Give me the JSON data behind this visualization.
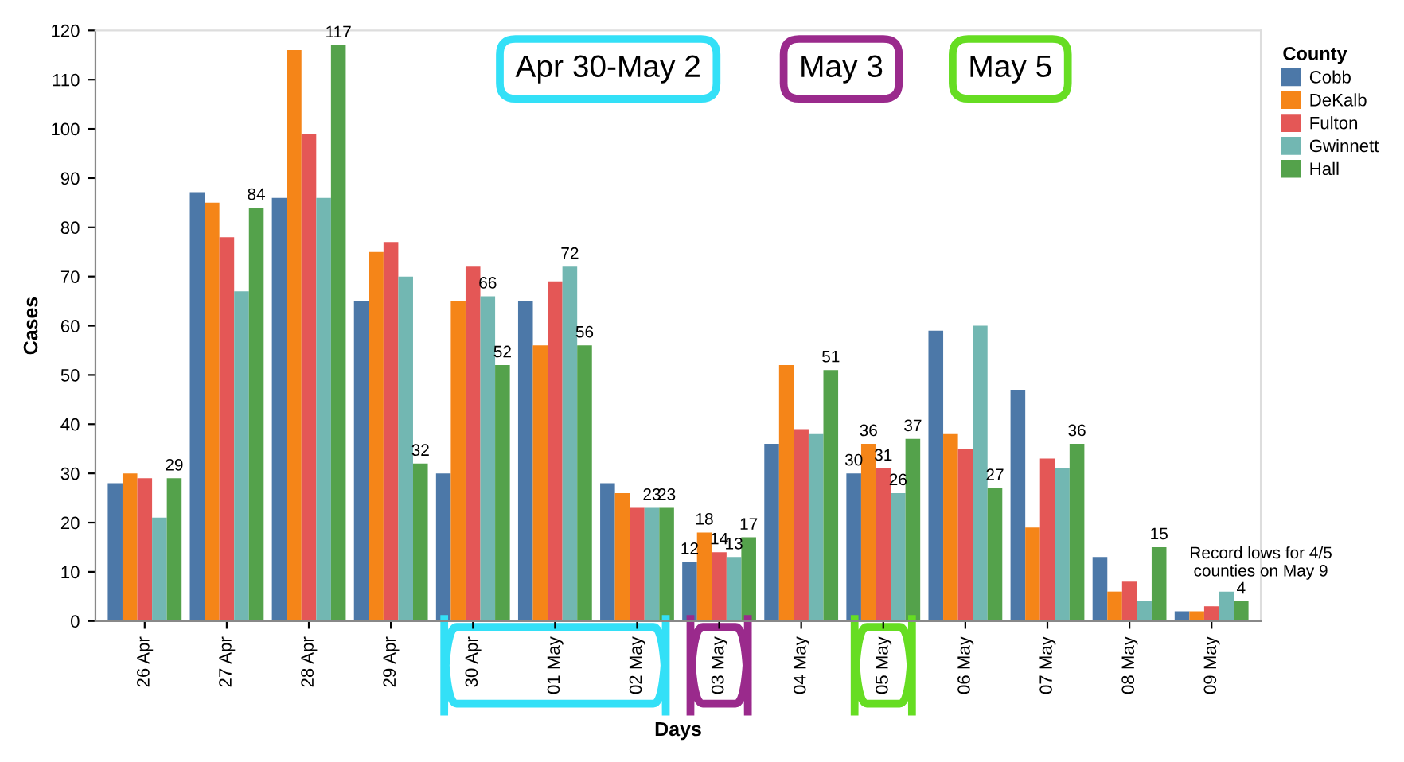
{
  "chart_data": {
    "type": "bar",
    "xlabel": "Days",
    "ylabel": "Cases",
    "legend_title": "County",
    "legend": "top right",
    "grid": false,
    "categories": [
      "26 Apr",
      "27 Apr",
      "28 Apr",
      "29 Apr",
      "30 Apr",
      "01 May",
      "02 May",
      "03 May",
      "04 May",
      "05 May",
      "06 May",
      "07 May",
      "08 May",
      "09 May"
    ],
    "ylim": [
      0,
      120
    ],
    "yticks": [
      0,
      10,
      20,
      30,
      40,
      50,
      60,
      70,
      80,
      90,
      100,
      110,
      120
    ],
    "series": [
      {
        "name": "Cobb",
        "color": "#4c78a8",
        "values": [
          28,
          87,
          86,
          65,
          30,
          65,
          28,
          12,
          36,
          30,
          59,
          47,
          13,
          2
        ],
        "value_labels": [
          null,
          null,
          null,
          null,
          null,
          null,
          null,
          "12",
          null,
          "30",
          null,
          null,
          null,
          null
        ]
      },
      {
        "name": "DeKalb",
        "color": "#f58518",
        "values": [
          30,
          85,
          116,
          75,
          65,
          56,
          26,
          18,
          52,
          36,
          38,
          19,
          6,
          2
        ],
        "value_labels": [
          null,
          null,
          null,
          null,
          null,
          null,
          null,
          "18",
          null,
          "36",
          null,
          null,
          null,
          null
        ]
      },
      {
        "name": "Fulton",
        "color": "#e45756",
        "values": [
          29,
          78,
          99,
          77,
          72,
          69,
          23,
          14,
          39,
          31,
          35,
          33,
          8,
          3
        ],
        "value_labels": [
          null,
          null,
          null,
          null,
          null,
          null,
          null,
          "14",
          null,
          "31",
          null,
          null,
          null,
          null
        ]
      },
      {
        "name": "Gwinnett",
        "color": "#72b7b2",
        "values": [
          21,
          67,
          86,
          70,
          66,
          72,
          23,
          13,
          38,
          26,
          60,
          31,
          4,
          6
        ],
        "value_labels": [
          null,
          null,
          null,
          null,
          "66",
          "72",
          "23",
          "13",
          null,
          "26",
          null,
          null,
          null,
          null
        ]
      },
      {
        "name": "Hall",
        "color": "#54a24b",
        "values": [
          29,
          84,
          117,
          32,
          52,
          56,
          23,
          17,
          51,
          37,
          27,
          36,
          15,
          4
        ],
        "value_labels": [
          "29",
          "84",
          "117",
          "32",
          "52",
          "56",
          "23",
          "17",
          "51",
          "37",
          "27",
          "36",
          "15",
          "4"
        ]
      }
    ],
    "annotations": [
      "Apr 30-May 2",
      "May 3",
      "May 5",
      "Record lows for 4/5\ncounties on May 9"
    ]
  }
}
